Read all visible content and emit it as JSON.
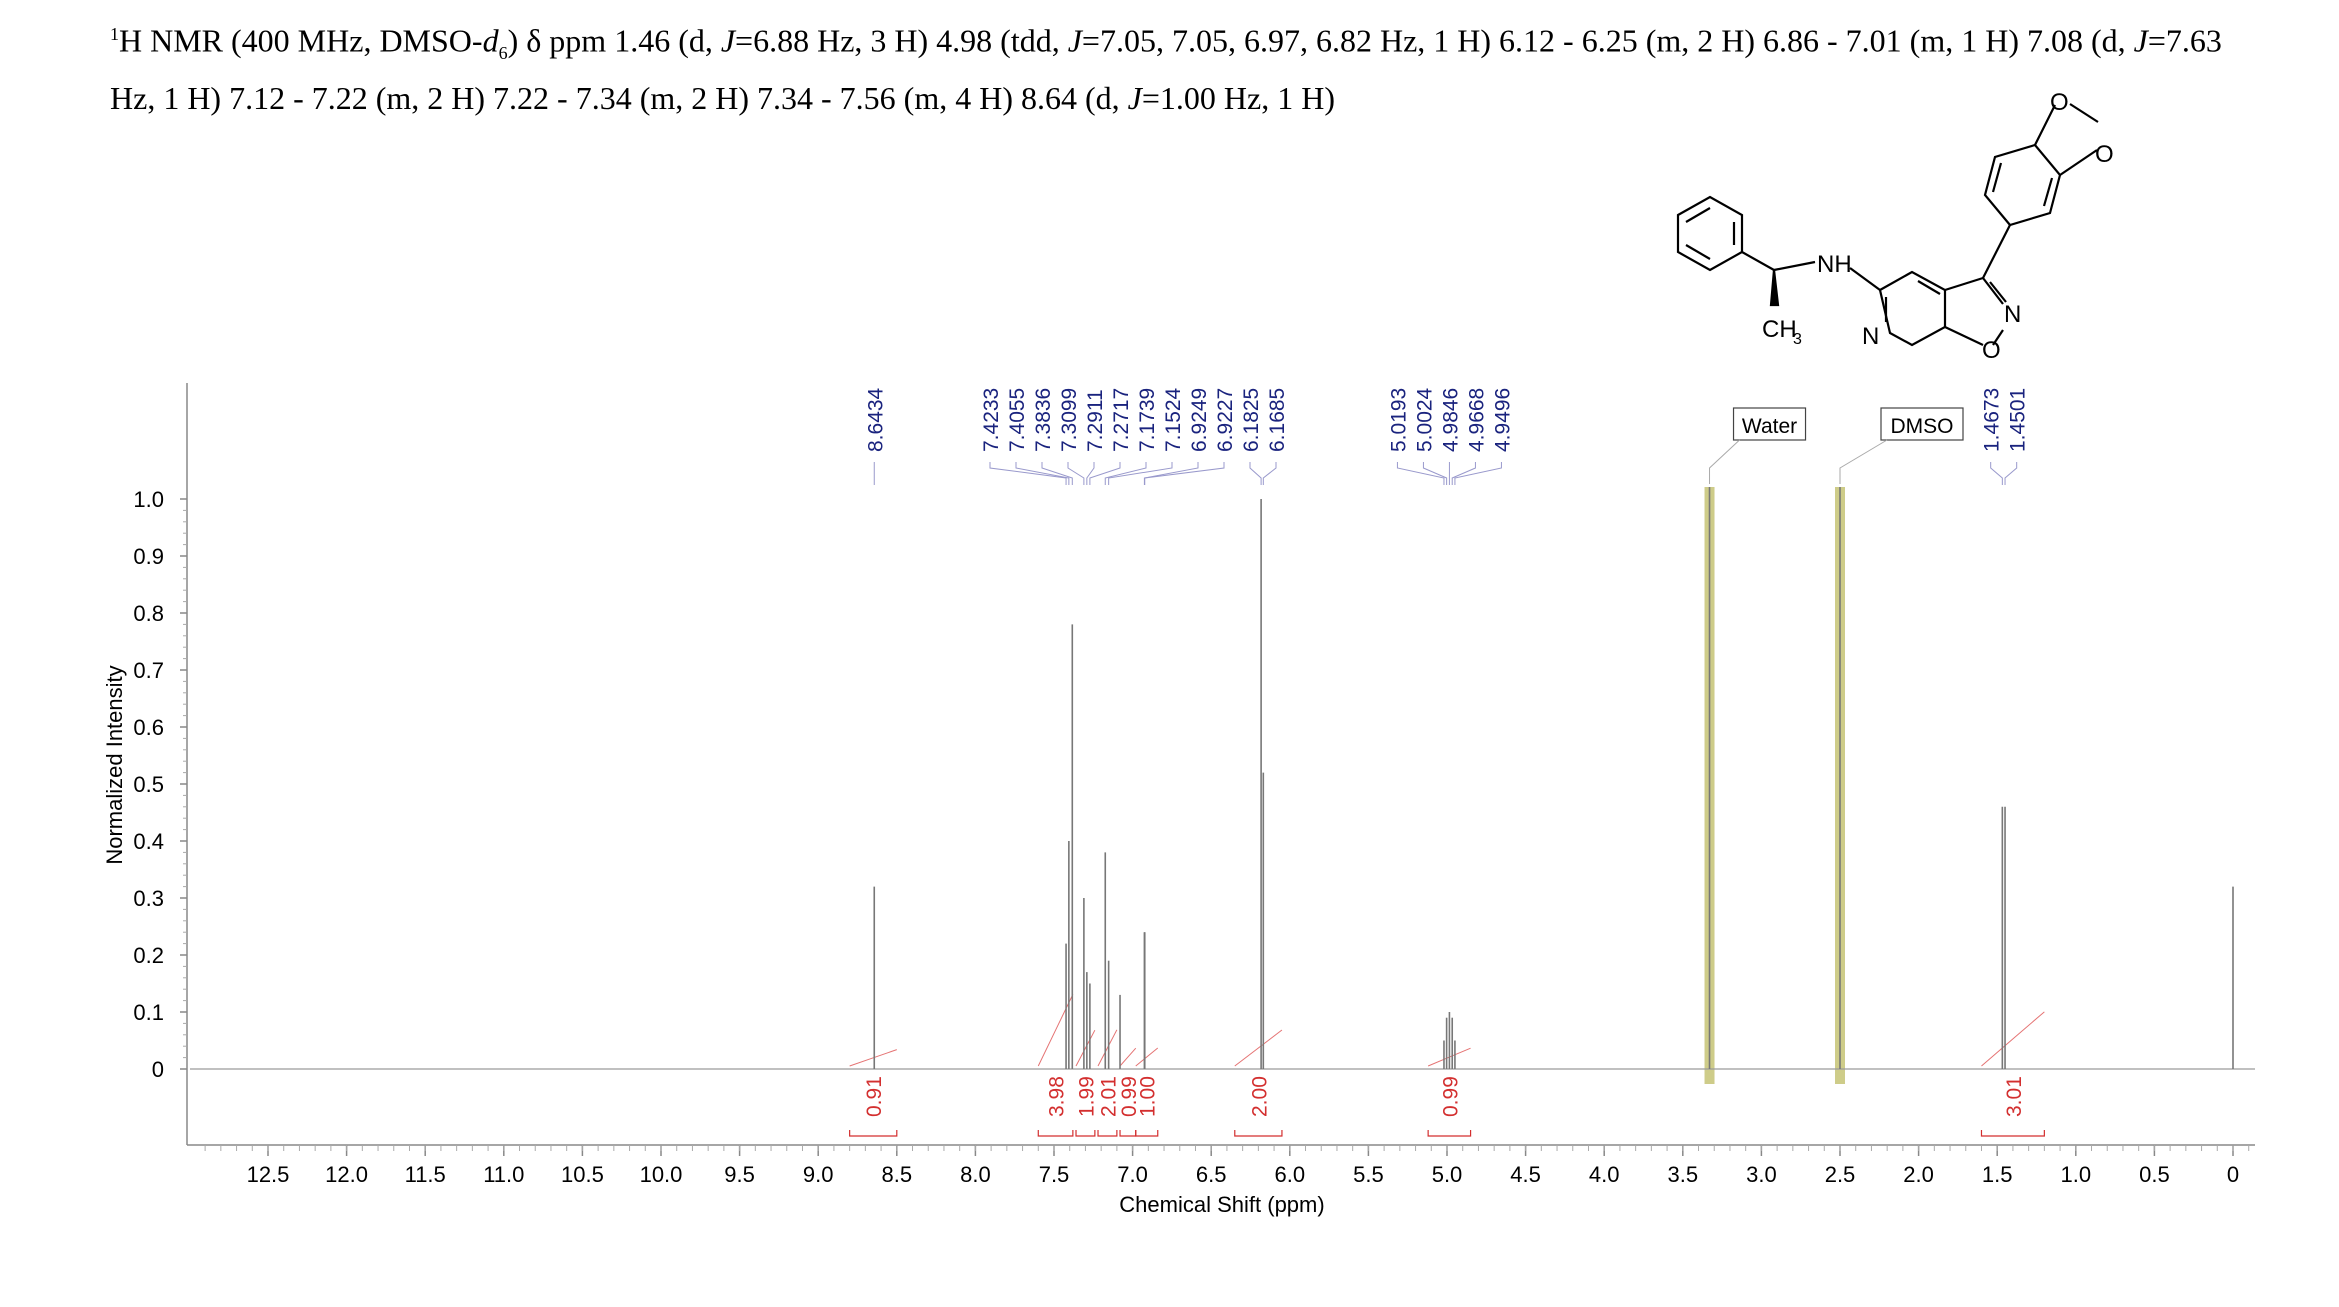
{
  "header": {
    "nucleus_mass": "1",
    "nucleus_symbol": "H NMR (400 MHz, DMSO-",
    "solvent_italic": "d",
    "solvent_sub": "6",
    "rest_line1": ") δ ppm 1.46 (d, ",
    "j_symbol": "J",
    "text_a": "=6.88 Hz, 3 H) 4.98 (tdd, ",
    "text_b": "=7.05, 7.05, 6.97, 6.82 Hz, 1 H) 6.12 - 6.25 (m, 2 H) 6.86 - 7.01 (m, 1 H) 7.08 (d, ",
    "text_c": "=7.63 Hz, 1 H) 7.12 - 7.22 (m, 2 H) 7.22 - 7.34 (m, 2 H) 7.34 - 7.56 (m, 4 H) 8.64 (d, ",
    "text_d": "=1.00 Hz, 1 H)"
  },
  "structure": {
    "label_nh": "NH",
    "label_ch3": "CH",
    "label_ch3_sub": "3",
    "label_n_ring": "N",
    "label_n_isox": "N",
    "label_o_isox": "O",
    "label_o1": "O",
    "label_o2": "O"
  },
  "chart_data": {
    "type": "line",
    "title": "",
    "xlabel": "Chemical Shift (ppm)",
    "ylabel": "Normalized Intensity",
    "xlim": [
      13.0,
      -0.15
    ],
    "ylim": [
      -0.05,
      1.0
    ],
    "x_reversed": true,
    "x_ticks": [
      12.5,
      12.0,
      11.5,
      11.0,
      10.5,
      10.0,
      9.5,
      9.0,
      8.5,
      8.0,
      7.5,
      7.0,
      6.5,
      6.0,
      5.5,
      5.0,
      4.5,
      4.0,
      3.5,
      3.0,
      2.5,
      2.0,
      1.5,
      1.0,
      0.5,
      0
    ],
    "x_tick_labels": [
      "12.5",
      "12.0",
      "11.5",
      "11.0",
      "10.5",
      "10.0",
      "9.5",
      "9.0",
      "8.5",
      "8.0",
      "7.5",
      "7.0",
      "6.5",
      "6.0",
      "5.5",
      "5.0",
      "4.5",
      "4.0",
      "3.5",
      "3.0",
      "2.5",
      "2.0",
      "1.5",
      "1.0",
      "0.5",
      "0"
    ],
    "y_ticks": [
      0,
      0.1,
      0.2,
      0.3,
      0.4,
      0.5,
      0.6,
      0.7,
      0.8,
      0.9,
      1.0
    ],
    "y_tick_labels": [
      "0",
      "0.1",
      "0.2",
      "0.3",
      "0.4",
      "0.5",
      "0.6",
      "0.7",
      "0.8",
      "0.9",
      "1.0"
    ],
    "peaks": [
      {
        "ppm": 8.6434,
        "height": 0.32
      },
      {
        "ppm": 7.4233,
        "height": 0.22
      },
      {
        "ppm": 7.4055,
        "height": 0.4
      },
      {
        "ppm": 7.3836,
        "height": 0.78
      },
      {
        "ppm": 7.3099,
        "height": 0.3
      },
      {
        "ppm": 7.2911,
        "height": 0.17
      },
      {
        "ppm": 7.2717,
        "height": 0.15
      },
      {
        "ppm": 7.1739,
        "height": 0.38
      },
      {
        "ppm": 7.1524,
        "height": 0.19
      },
      {
        "ppm": 7.08,
        "height": 0.13
      },
      {
        "ppm": 6.9249,
        "height": 0.24
      },
      {
        "ppm": 6.9227,
        "height": 0.24
      },
      {
        "ppm": 6.1825,
        "height": 1.0
      },
      {
        "ppm": 6.1685,
        "height": 0.52
      },
      {
        "ppm": 5.0193,
        "height": 0.05
      },
      {
        "ppm": 5.0024,
        "height": 0.09
      },
      {
        "ppm": 4.9846,
        "height": 0.1
      },
      {
        "ppm": 4.9668,
        "height": 0.09
      },
      {
        "ppm": 4.9496,
        "height": 0.05
      },
      {
        "ppm": 3.33,
        "height": 1.0
      },
      {
        "ppm": 2.5,
        "height": 1.0
      },
      {
        "ppm": 1.4673,
        "height": 0.46
      },
      {
        "ppm": 1.4501,
        "height": 0.46
      },
      {
        "ppm": 0.0,
        "height": 0.32
      }
    ],
    "peak_labels": [
      {
        "group": [
          8.6434
        ],
        "labels": [
          "8.6434"
        ]
      },
      {
        "group": [
          7.4233,
          7.4055,
          7.3836,
          7.3099,
          7.2911,
          7.2717,
          7.1739,
          7.1524,
          6.9249,
          6.9227,
          6.1825,
          6.1685
        ],
        "labels": [
          "7.4233",
          "7.4055",
          "7.3836",
          "7.3099",
          "7.2911",
          "7.2717",
          "7.1739",
          "7.1524",
          "6.9249",
          "6.9227",
          "6.1825",
          "6.1685"
        ]
      },
      {
        "group": [
          5.0193,
          5.0024,
          4.9846,
          4.9668,
          4.9496
        ],
        "labels": [
          "5.0193",
          "5.0024",
          "4.9846",
          "4.9668",
          "4.9496"
        ]
      },
      {
        "group": [
          1.4673,
          1.4501
        ],
        "labels": [
          "1.4673",
          "1.4501"
        ]
      }
    ],
    "solvent_regions": [
      {
        "name": "Water",
        "ppm": 3.33
      },
      {
        "name": "DMSO",
        "ppm": 2.5
      }
    ],
    "integrals": [
      {
        "value": "0.91",
        "from": 8.8,
        "to": 8.5
      },
      {
        "value": "3.98",
        "from": 7.6,
        "to": 7.38
      },
      {
        "value": "1.99",
        "from": 7.36,
        "to": 7.24
      },
      {
        "value": "2.01",
        "from": 7.22,
        "to": 7.1
      },
      {
        "value": "0.99",
        "from": 7.08,
        "to": 6.98
      },
      {
        "value": "1.00",
        "from": 6.98,
        "to": 6.84
      },
      {
        "value": "2.00",
        "from": 6.35,
        "to": 6.05
      },
      {
        "value": "0.99",
        "from": 5.12,
        "to": 4.85
      },
      {
        "value": "3.01",
        "from": 1.6,
        "to": 1.2
      }
    ]
  }
}
